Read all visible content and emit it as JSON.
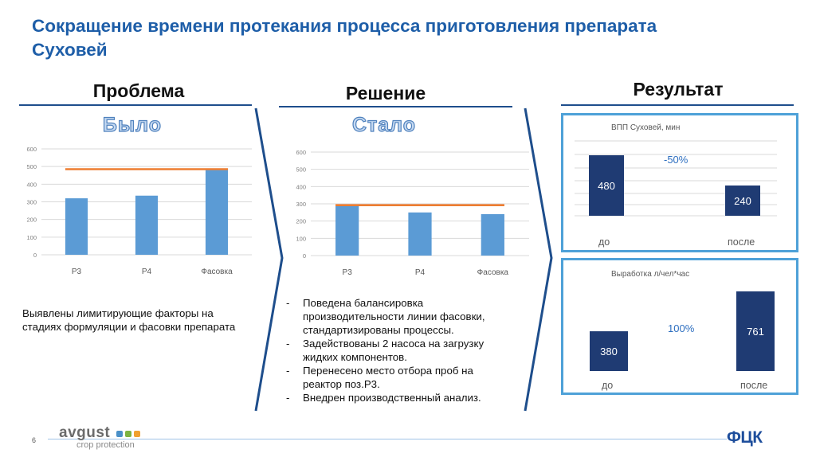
{
  "title": "Сокращение времени протекания процесса приготовления препарата Суховей",
  "columns": {
    "problem": "Проблема",
    "solution": "Решение",
    "result": "Результат"
  },
  "problem_text": "Выявлены лимитирующие факторы на стадиях формуляции и фасовки препарата",
  "solution_bullets": [
    "Поведена балансировка производительности линии фасовки, стандартизированы процессы.",
    "Задействованы 2 насоса на загрузку жидких компонентов.",
    "Перенесено место отбора проб на реактор поз.Р3.",
    "Внедрен производственный анализ."
  ],
  "footer": {
    "page_number": "6",
    "logo_left": "avgust",
    "logo_left_sub": "crop protection",
    "logo_right": "ФЦК"
  },
  "colors": {
    "title": "#1e5ea8",
    "bar": "#5b9bd5",
    "limit_line": "#ed7d31",
    "result_bar": "#1f3b73",
    "result_border": "#4ea1d8",
    "chevron": "#1e4e8c"
  },
  "chart_data": [
    {
      "type": "bar",
      "label": "Было",
      "categories": [
        "Р3",
        "Р4",
        "Фасовка"
      ],
      "values": [
        320,
        335,
        480
      ],
      "limit_line": 485,
      "ylim": [
        0,
        600
      ],
      "yticks": [
        "0",
        "100",
        "200",
        "300",
        "400",
        "500",
        "600"
      ],
      "grid": true
    },
    {
      "type": "bar",
      "label": "Стало",
      "categories": [
        "Р3",
        "Р4",
        "Фасовка"
      ],
      "values": [
        290,
        250,
        240
      ],
      "limit_line": 292,
      "ylim": [
        0,
        600
      ],
      "yticks": [
        "0",
        "100",
        "200",
        "300",
        "400",
        "500",
        "600"
      ],
      "grid": true
    },
    {
      "type": "bar",
      "title": "ВПП Суховей, мин",
      "categories": [
        "до",
        "после"
      ],
      "values": [
        480,
        240
      ],
      "value_labels": [
        "480",
        "240"
      ],
      "change": "-50%",
      "grid": true
    },
    {
      "type": "bar",
      "title": "Выработка л/чел*час",
      "categories": [
        "до",
        "после"
      ],
      "values": [
        380,
        761
      ],
      "value_labels": [
        "380",
        "761"
      ],
      "change": "100%",
      "grid": false
    }
  ]
}
